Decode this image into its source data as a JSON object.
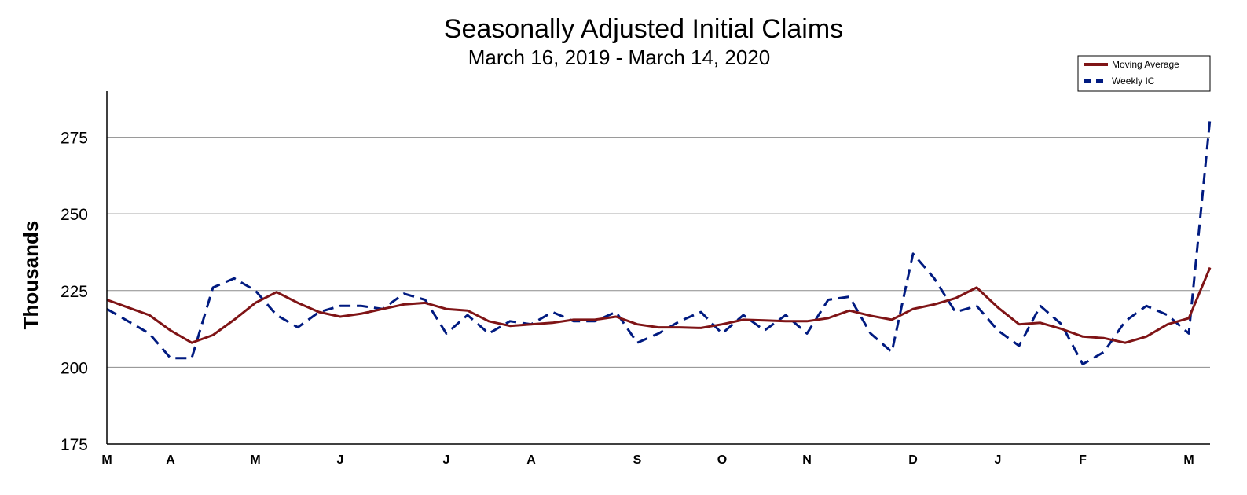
{
  "chart_data": {
    "type": "line",
    "title": "Seasonally Adjusted Initial Claims",
    "subtitle": "March 16, 2019 - March 14, 2020",
    "ylabel": "Thousands",
    "xlabel": "",
    "ylim": [
      175,
      290
    ],
    "yticks": [
      175,
      200,
      225,
      250,
      275
    ],
    "grid": true,
    "legend_position": "top-right",
    "x_tick_labels": [
      {
        "label": "M",
        "x": 0
      },
      {
        "label": "A",
        "x": 3
      },
      {
        "label": "M",
        "x": 7
      },
      {
        "label": "J",
        "x": 11
      },
      {
        "label": "J",
        "x": 16
      },
      {
        "label": "A",
        "x": 20
      },
      {
        "label": "S",
        "x": 25
      },
      {
        "label": "O",
        "x": 29
      },
      {
        "label": "N",
        "x": 33
      },
      {
        "label": "D",
        "x": 38
      },
      {
        "label": "J",
        "x": 42
      },
      {
        "label": "F",
        "x": 46
      },
      {
        "label": "M",
        "x": 51
      }
    ],
    "x": [
      "Mar 16, 2019",
      "Mar 23, 2019",
      "Mar 30, 2019",
      "Apr 6, 2019",
      "Apr 13, 2019",
      "Apr 20, 2019",
      "Apr 27, 2019",
      "May 4, 2019",
      "May 11, 2019",
      "May 18, 2019",
      "May 25, 2019",
      "Jun 1, 2019",
      "Jun 8, 2019",
      "Jun 15, 2019",
      "Jun 22, 2019",
      "Jun 29, 2019",
      "Jul 6, 2019",
      "Jul 13, 2019",
      "Jul 20, 2019",
      "Jul 27, 2019",
      "Aug 3, 2019",
      "Aug 10, 2019",
      "Aug 17, 2019",
      "Aug 24, 2019",
      "Aug 31, 2019",
      "Sep 7, 2019",
      "Sep 14, 2019",
      "Sep 21, 2019",
      "Sep 28, 2019",
      "Oct 5, 2019",
      "Oct 12, 2019",
      "Oct 19, 2019",
      "Oct 26, 2019",
      "Nov 2, 2019",
      "Nov 9, 2019",
      "Nov 16, 2019",
      "Nov 23, 2019",
      "Nov 30, 2019",
      "Dec 7, 2019",
      "Dec 14, 2019",
      "Dec 21, 2019",
      "Dec 28, 2019",
      "Jan 4, 2020",
      "Jan 11, 2020",
      "Jan 18, 2020",
      "Jan 25, 2020",
      "Feb 1, 2020",
      "Feb 8, 2020",
      "Feb 15, 2020",
      "Feb 22, 2020",
      "Feb 29, 2020",
      "Mar 7, 2020",
      "Mar 14, 2020"
    ],
    "series": [
      {
        "name": "Moving Average",
        "color": "#7f1416",
        "style": "solid",
        "values": [
          222,
          219.5,
          217,
          212,
          208,
          210.5,
          215.5,
          221,
          224.5,
          221,
          218,
          216.5,
          217.5,
          219,
          220.5,
          221,
          219,
          218.5,
          215,
          213.5,
          214,
          214.5,
          215.5,
          215.5,
          216.5,
          214,
          213,
          213,
          212.8,
          214,
          215.5,
          215.3,
          215,
          215,
          216,
          218.5,
          216.8,
          215.5,
          219,
          220.5,
          222.5,
          226,
          219.5,
          214,
          214.5,
          212.5,
          210,
          209.5,
          208,
          210,
          214,
          216,
          232.5
        ]
      },
      {
        "name": "Weekly IC",
        "color": "#001a80",
        "style": "dashed",
        "values": [
          219,
          215,
          211,
          203,
          203,
          226,
          229,
          225,
          217,
          213,
          218,
          220,
          220,
          219,
          224,
          222,
          211,
          217,
          211,
          215,
          214,
          218,
          215,
          215,
          218,
          208,
          211,
          215,
          218,
          211,
          217,
          212,
          217,
          211,
          222,
          223,
          211,
          205,
          237,
          229,
          218,
          220,
          212,
          207,
          220,
          214,
          201,
          205,
          215,
          220,
          217,
          211,
          281
        ]
      }
    ]
  }
}
